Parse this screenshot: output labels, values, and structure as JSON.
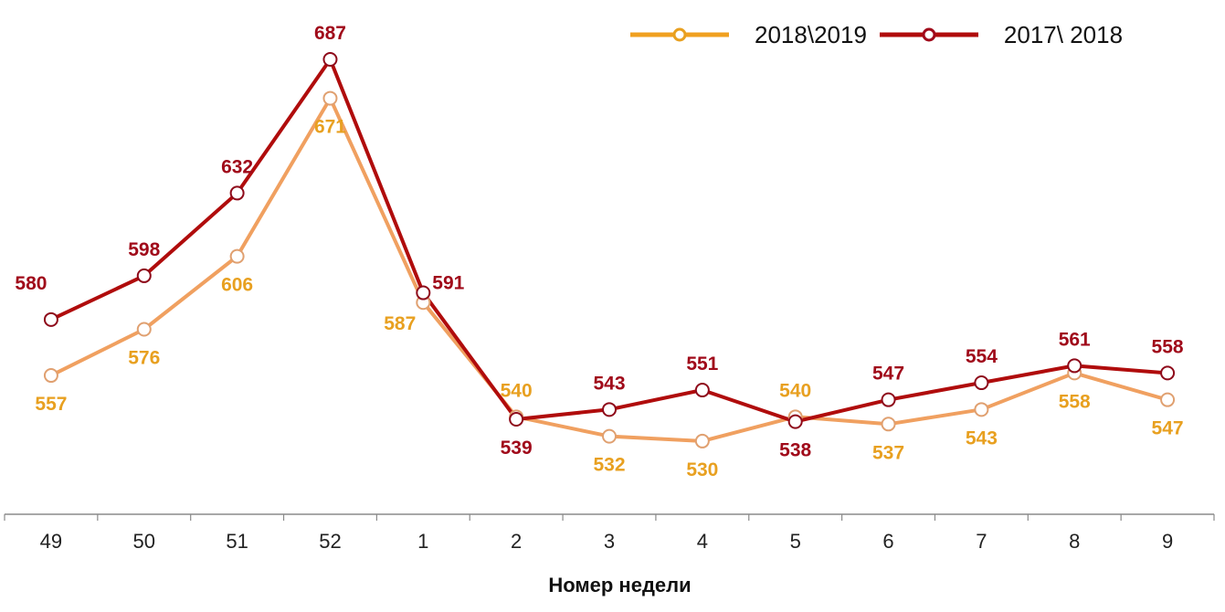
{
  "chart_data": {
    "type": "line",
    "title": "",
    "xlabel": "Номер недели",
    "ylabel": "",
    "categories": [
      "49",
      "50",
      "51",
      "52",
      "1",
      "2",
      "3",
      "4",
      "5",
      "6",
      "7",
      "8",
      "9"
    ],
    "series": [
      {
        "name": "2018\\2019",
        "color": "#F0A060",
        "label_color": "#E8A020",
        "values": [
          557,
          576,
          606,
          671,
          587,
          540,
          532,
          530,
          540,
          537,
          543,
          558,
          547
        ],
        "label_pos": [
          "below",
          "below",
          "below",
          "below",
          "left",
          "above",
          "below",
          "below",
          "above",
          "below",
          "below",
          "below",
          "below"
        ]
      },
      {
        "name": "2017\\ 2018",
        "color": "#B00C0C",
        "label_color": "#A00A1A",
        "values": [
          580,
          598,
          632,
          687,
          591,
          539,
          543,
          551,
          538,
          547,
          554,
          561,
          558
        ],
        "label_pos": [
          "aboveleft",
          "above",
          "above",
          "above",
          "right",
          "below",
          "above",
          "above",
          "below",
          "above",
          "above",
          "above",
          "above"
        ]
      }
    ],
    "legend_position": "top-right",
    "grid": false,
    "y_axis_visible": false
  },
  "legend": {
    "items": [
      {
        "label": "2018\\2019",
        "color": "#F0A060",
        "marker_color": "#E8A020"
      },
      {
        "label": "2017\\ 2018",
        "color": "#B00C0C",
        "marker_color": "#A00A1A"
      }
    ]
  },
  "axis": {
    "x_title": "Номер недели"
  }
}
